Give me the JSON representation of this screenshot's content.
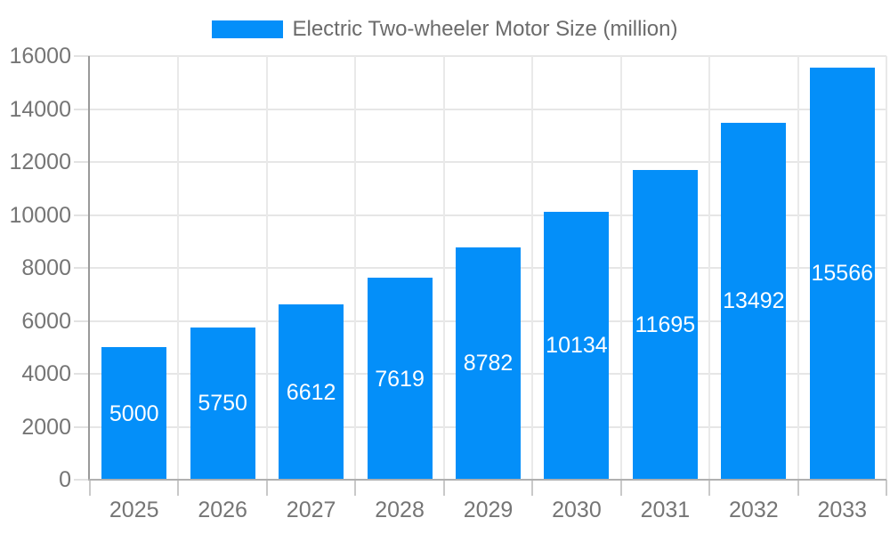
{
  "legend": {
    "label": "Electric Two-wheeler Motor Size (million)"
  },
  "chart_data": {
    "type": "bar",
    "title": "Electric Two-wheeler Motor Size (million)",
    "series_name": "Electric Two-wheeler Motor Size (million)",
    "categories": [
      "2025",
      "2026",
      "2027",
      "2028",
      "2029",
      "2030",
      "2031",
      "2032",
      "2033"
    ],
    "values": [
      5000,
      5750,
      6612,
      7619,
      8782,
      10134,
      11695,
      13492,
      15566
    ],
    "xlabel": "",
    "ylabel": "",
    "ylim": [
      0,
      16000
    ],
    "yticks": [
      0,
      2000,
      4000,
      6000,
      8000,
      10000,
      12000,
      14000,
      16000
    ],
    "grid": true,
    "legend_position": "top-center",
    "value_labels_inside_bars": true
  },
  "colors": {
    "bar": "#048ff9",
    "value_label": "#ffffff",
    "grid_h": "#e6e6e6",
    "grid_v": "#e9e9e9",
    "y_axis_line": "#9a9a9a",
    "x_axis_line": "#b0b0b0",
    "y_tick": "#e2e2e2",
    "x_tick": "#c9c9c9",
    "tick_label": "#757575",
    "legend_text": "#6b6b6b",
    "background": "#ffffff"
  }
}
